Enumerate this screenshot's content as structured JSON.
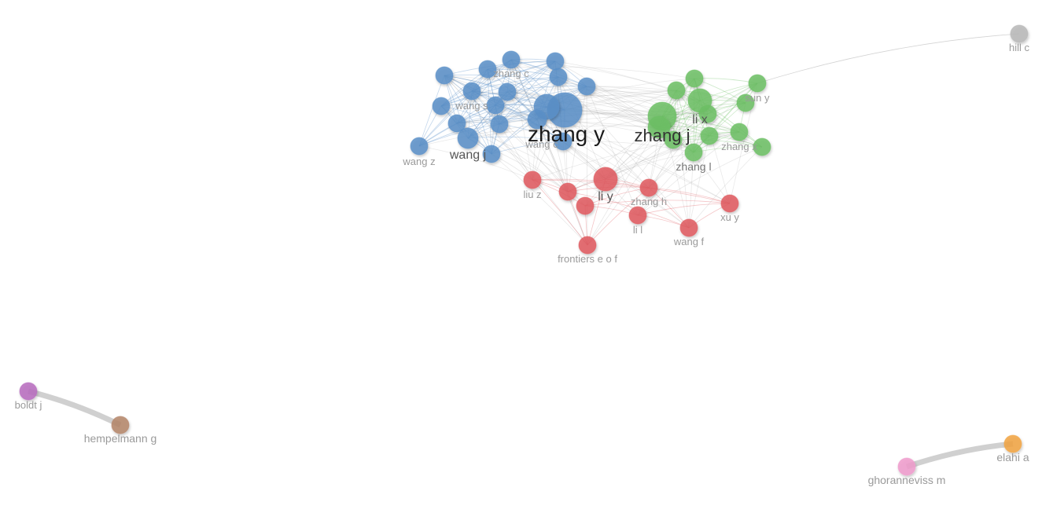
{
  "diagram": {
    "type": "co-authorship-network",
    "clusters": [
      {
        "id": "blue",
        "color": "#5a8fc8"
      },
      {
        "id": "green",
        "color": "#6cbf64"
      },
      {
        "id": "red",
        "color": "#e05a5f"
      },
      {
        "id": "grey",
        "color": "#b8b8b8"
      },
      {
        "id": "purple",
        "color": "#b86cbf"
      },
      {
        "id": "brown",
        "color": "#b5866a"
      },
      {
        "id": "orange",
        "color": "#f2a542"
      },
      {
        "id": "pink",
        "color": "#f09ccd"
      }
    ],
    "labels": {
      "zhang_y": "zhang y",
      "zhang_j": "zhang j",
      "li_x": "li x",
      "wang_j": "wang j",
      "li_y": "li y",
      "zhang_c": "zhang c",
      "wang_s": "wang s",
      "wang_z": "wang z",
      "wang_c": "wang c",
      "sun_y": "sun y",
      "zhang_x": "zhang x",
      "zhang_l": "zhang l",
      "liu_z": "liu z",
      "zhang_h": "zhang h",
      "xu_y": "xu y",
      "li_l": "li l",
      "wang_f": "wang f",
      "frontiers": "frontiers e o f",
      "hill_c": "hill c",
      "boldt_j": "boldt j",
      "hempelmann_g": "hempelmann g",
      "elahi_a": "elahi a",
      "ghoranneviss_m": "ghoranneviss m"
    },
    "links": [
      {
        "from": "boldt_j",
        "to": "hempelmann_g",
        "weight": "strong"
      },
      {
        "from": "ghoranneviss_m",
        "to": "elahi_a",
        "weight": "strong"
      },
      {
        "from": "sun_y",
        "to": "hill_c",
        "weight": "weak"
      }
    ]
  }
}
